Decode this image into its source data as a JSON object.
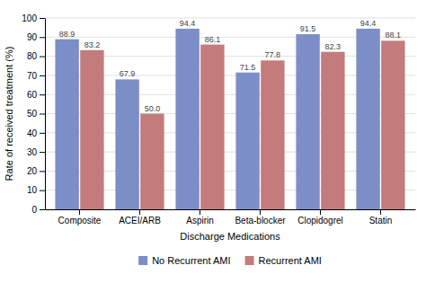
{
  "chart_data": {
    "type": "bar",
    "categories": [
      "Composite",
      "ACEI/ARB",
      "Aspirin",
      "Beta-blocker",
      "Clopidogrel",
      "Statin"
    ],
    "series": [
      {
        "name": "No Recurrent AMI",
        "color": "#7b8ec8",
        "values": [
          88.9,
          67.9,
          94.4,
          71.5,
          91.5,
          94.4
        ]
      },
      {
        "name": "Recurrent AMI",
        "color": "#c47b7b",
        "values": [
          83.2,
          50.0,
          86.1,
          77.8,
          82.3,
          88.1
        ],
        "value_labels": [
          "83.2",
          "50.0",
          "86.1",
          "77.8",
          "82.3",
          "88.1"
        ]
      }
    ],
    "xlabel": "Discharge Medications",
    "ylabel": "Rate of received treatment (%)",
    "ylim": [
      0,
      100
    ],
    "yticks": [
      0,
      10,
      20,
      30,
      40,
      50,
      60,
      70,
      80,
      90,
      100
    ],
    "grid": true,
    "legend": "bottom",
    "data_labels": true
  }
}
